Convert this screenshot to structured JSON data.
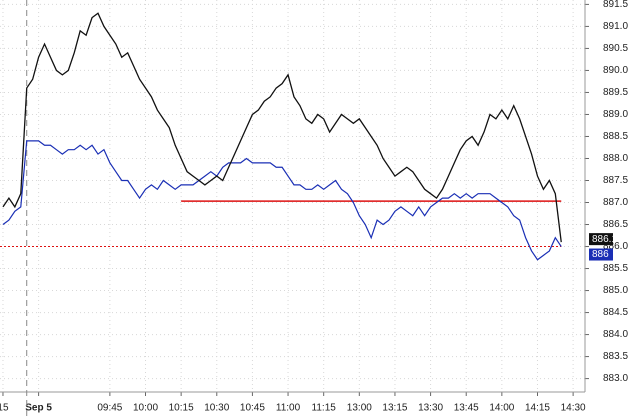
{
  "chart_data": {
    "type": "line",
    "xlim": [
      -0.5,
      98
    ],
    "ylim": [
      882.9,
      891.6
    ],
    "xticks": [
      {
        "value": 0,
        "label": "15"
      },
      {
        "value": 6,
        "label": "Sep 5"
      },
      {
        "value": 18,
        "label": "09:45"
      },
      {
        "value": 24,
        "label": "10:00"
      },
      {
        "value": 30,
        "label": "10:15"
      },
      {
        "value": 36,
        "label": "10:30"
      },
      {
        "value": 42,
        "label": "10:45"
      },
      {
        "value": 48,
        "label": "11:00"
      },
      {
        "value": 54,
        "label": "11:15"
      },
      {
        "value": 60,
        "label": "13:00"
      },
      {
        "value": 66,
        "label": "13:15"
      },
      {
        "value": 72,
        "label": "13:30"
      },
      {
        "value": 78,
        "label": "13:45"
      },
      {
        "value": 84,
        "label": "14:00"
      },
      {
        "value": 90,
        "label": "14:15"
      },
      {
        "value": 96,
        "label": "14:30"
      }
    ],
    "yticks": [
      891.5,
      {
        "value": 891,
        "label": "891.0"
      },
      890.5,
      {
        "value": 890,
        "label": "890.0"
      },
      889.5,
      {
        "value": 889,
        "label": "889.0"
      },
      888.5,
      {
        "value": 888,
        "label": "888.0"
      },
      887.5,
      {
        "value": 887,
        "label": "887.0"
      },
      886.5,
      {
        "value": 886,
        "label": "886.0"
      },
      885.5,
      {
        "value": 885,
        "label": "885.0"
      },
      884.5,
      {
        "value": 884,
        "label": "884.0"
      },
      883.5,
      {
        "value": 883,
        "label": "883.0"
      }
    ],
    "grid": true,
    "session_break": 4,
    "series": [
      {
        "color": "#111111",
        "last_label": "886.1",
        "values": [
          886.9,
          887.1,
          886.9,
          887.2,
          889.6,
          889.8,
          890.3,
          890.6,
          890.3,
          890.0,
          889.9,
          890.0,
          890.4,
          890.9,
          890.8,
          891.2,
          891.3,
          891.0,
          890.8,
          890.6,
          890.3,
          890.4,
          890.1,
          889.8,
          889.6,
          889.4,
          889.1,
          888.9,
          888.7,
          888.3,
          888.0,
          887.7,
          887.6,
          887.5,
          887.4,
          887.5,
          887.6,
          887.5,
          887.8,
          888.1,
          888.4,
          888.7,
          889.0,
          889.1,
          889.3,
          889.4,
          889.6,
          889.7,
          889.9,
          889.4,
          889.2,
          888.9,
          888.8,
          889.0,
          888.9,
          888.6,
          888.8,
          889.0,
          888.9,
          888.8,
          888.9,
          888.7,
          888.5,
          888.3,
          888.0,
          887.8,
          887.6,
          887.7,
          887.8,
          887.7,
          887.5,
          887.3,
          887.2,
          887.1,
          887.3,
          887.6,
          887.9,
          888.2,
          888.4,
          888.5,
          888.3,
          888.6,
          889.0,
          888.9,
          889.1,
          888.9,
          889.2,
          888.9,
          888.5,
          888.1,
          887.6,
          887.3,
          887.5,
          887.2,
          886.1
        ]
      },
      {
        "color": "#1a2fb5",
        "last_label": "886",
        "values": [
          886.5,
          886.6,
          886.8,
          886.9,
          888.4,
          888.4,
          888.4,
          888.3,
          888.3,
          888.2,
          888.1,
          888.2,
          888.2,
          888.3,
          888.2,
          888.3,
          888.1,
          888.2,
          887.9,
          887.7,
          887.5,
          887.5,
          887.3,
          887.1,
          887.3,
          887.4,
          887.3,
          887.5,
          887.4,
          887.3,
          887.4,
          887.4,
          887.4,
          887.5,
          887.6,
          887.7,
          887.6,
          887.8,
          887.9,
          887.9,
          887.9,
          888.0,
          887.9,
          887.9,
          887.9,
          887.9,
          887.8,
          887.8,
          887.6,
          887.4,
          887.4,
          887.3,
          887.3,
          887.4,
          887.3,
          887.4,
          887.5,
          887.3,
          887.2,
          887.0,
          886.7,
          886.5,
          886.2,
          886.6,
          886.5,
          886.6,
          886.8,
          886.9,
          886.8,
          886.7,
          886.9,
          886.7,
          886.9,
          887.0,
          887.1,
          887.1,
          887.2,
          887.1,
          887.2,
          887.1,
          887.2,
          887.2,
          887.2,
          887.1,
          887.0,
          886.9,
          886.7,
          886.6,
          886.2,
          885.9,
          885.7,
          885.8,
          885.9,
          886.2,
          886.0
        ]
      }
    ],
    "reference_lines": [
      {
        "value": 887.03,
        "start": 30,
        "color": "#dd1111",
        "style": "solid"
      },
      {
        "value": 886.0,
        "start": -0.5,
        "color": "#dd1111",
        "style": "dotted"
      }
    ]
  }
}
